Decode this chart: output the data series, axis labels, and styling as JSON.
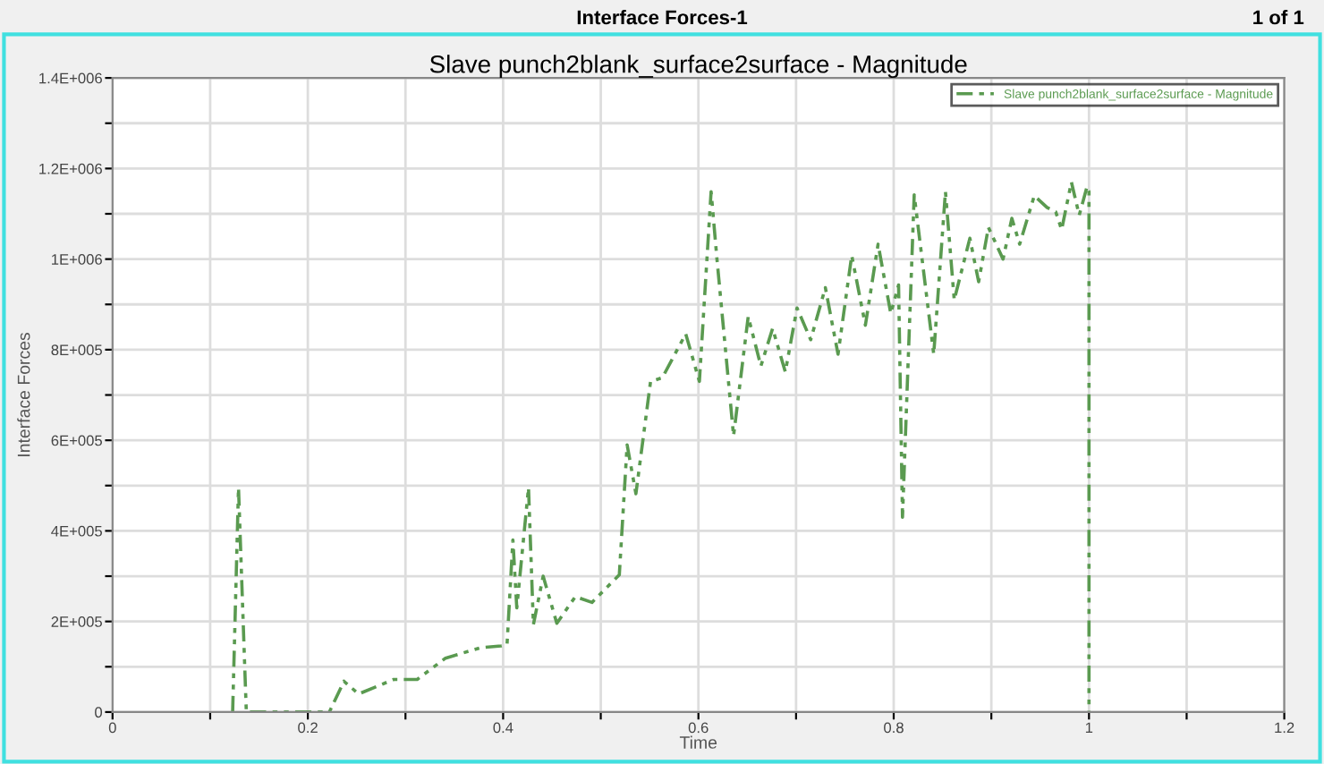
{
  "chart_data": {
    "type": "line",
    "title": "Slave punch2blank_surface2surface - Magnitude",
    "xlabel": "Time",
    "ylabel": "Interface Forces",
    "annotations": [
      "Interface Forces-1",
      "1 of 1"
    ],
    "x": [
      0.123,
      0.129,
      0.137,
      0.222,
      0.237,
      0.252,
      0.288,
      0.312,
      0.341,
      0.377,
      0.398,
      0.404,
      0.41,
      0.414,
      0.426,
      0.431,
      0.441,
      0.455,
      0.474,
      0.491,
      0.519,
      0.527,
      0.536,
      0.551,
      0.563,
      0.587,
      0.601,
      0.613,
      0.619,
      0.636,
      0.651,
      0.664,
      0.676,
      0.689,
      0.701,
      0.715,
      0.73,
      0.743,
      0.757,
      0.771,
      0.784,
      0.797,
      0.805,
      0.809,
      0.821,
      0.841,
      0.853,
      0.862,
      0.878,
      0.887,
      0.897,
      0.912,
      0.921,
      0.929,
      0.944,
      0.957,
      0.966,
      0.972,
      0.982,
      0.99,
      0.998,
      1.0,
      1.0
    ],
    "series": [
      {
        "name": "Slave punch2blank_surface2surface - Magnitude",
        "color": "#5a9a50",
        "values": [
          0,
          495000,
          0,
          0,
          68000,
          40000,
          72000,
          72000,
          119000,
          142000,
          146000,
          149000,
          380000,
          230000,
          495000,
          193000,
          300000,
          196000,
          255000,
          242000,
          303000,
          590000,
          482000,
          730000,
          738000,
          835000,
          730000,
          1149000,
          1000000,
          610000,
          873000,
          764000,
          847000,
          751000,
          892000,
          822000,
          937000,
          790000,
          1008000,
          854000,
          1033000,
          880000,
          943000,
          430000,
          1142000,
          790000,
          1149000,
          910000,
          1046000,
          950000,
          1070000,
          1000000,
          1090000,
          1033000,
          1140000,
          1114000,
          1104000,
          1065000,
          1170000,
          1097000,
          1160000,
          1149000,
          0
        ]
      }
    ],
    "xlim": [
      0,
      1.2
    ],
    "ylim": [
      0,
      1400000
    ],
    "xticks": [
      0,
      {
        "value": 0.1,
        "label": null
      },
      0.2,
      {
        "value": 0.3,
        "label": null
      },
      0.4,
      {
        "value": 0.5,
        "label": null
      },
      0.6,
      {
        "value": 0.7,
        "label": null
      },
      0.8,
      {
        "value": 0.9,
        "label": null
      },
      1,
      {
        "value": 1.1,
        "label": null
      },
      1.2
    ],
    "yticks": [
      {
        "value": 0,
        "label": "0"
      },
      {
        "value": 100000,
        "label": null
      },
      {
        "value": 200000,
        "label": "2E+005"
      },
      {
        "value": 300000,
        "label": null
      },
      {
        "value": 400000,
        "label": "4E+005"
      },
      {
        "value": 500000,
        "label": null
      },
      {
        "value": 600000,
        "label": "6E+005"
      },
      {
        "value": 700000,
        "label": null
      },
      {
        "value": 800000,
        "label": "8E+005"
      },
      {
        "value": 900000,
        "label": null
      },
      {
        "value": 1000000,
        "label": "1E+006"
      },
      {
        "value": 1100000,
        "label": null
      },
      {
        "value": 1200000,
        "label": "1.2E+006"
      },
      {
        "value": 1300000,
        "label": null
      },
      {
        "value": 1400000,
        "label": "1.4E+006"
      }
    ],
    "grid": true,
    "legend": "top right",
    "line_style": "dashed",
    "marker": "none"
  }
}
